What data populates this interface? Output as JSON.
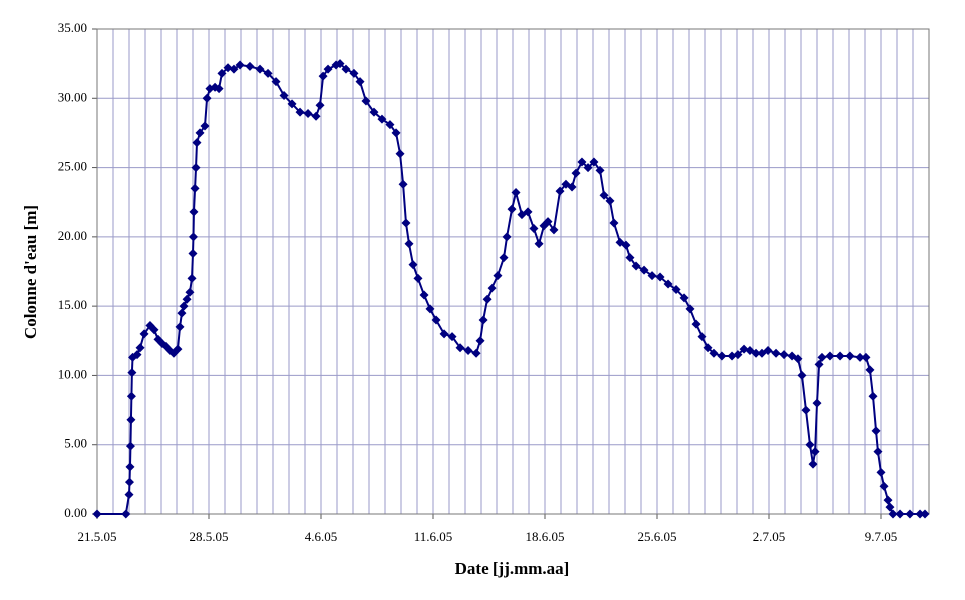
{
  "chart_data": {
    "type": "line",
    "x_label": "Date [jj.mm.aa]",
    "y_label": "Colonne d'eau [m]",
    "color": "#000080",
    "grid": true,
    "xlim": [
      0,
      52
    ],
    "ylim": [
      0,
      35
    ],
    "xticks": [
      {
        "value": 0,
        "label": "21.5.05"
      },
      {
        "value": 7,
        "label": "28.5.05"
      },
      {
        "value": 14,
        "label": "4.6.05"
      },
      {
        "value": 21,
        "label": "11.6.05"
      },
      {
        "value": 28,
        "label": "18.6.05"
      },
      {
        "value": 35,
        "label": "25.6.05"
      },
      {
        "value": 42,
        "label": "2.7.05"
      },
      {
        "value": 49,
        "label": "9.7.05"
      }
    ],
    "xgrid": [
      1,
      2,
      3,
      4,
      5,
      6,
      7,
      8,
      9,
      10,
      11,
      12,
      13,
      14,
      15,
      16,
      17,
      18,
      19,
      20,
      21,
      22,
      23,
      24,
      25,
      26,
      27,
      28,
      29,
      30,
      31,
      32,
      33,
      34,
      35,
      36,
      37,
      38,
      39,
      40,
      41,
      42,
      43,
      44,
      45,
      46,
      47,
      48,
      49,
      50,
      51
    ],
    "yticks": [
      {
        "value": 0,
        "label": "0.00"
      },
      {
        "value": 5,
        "label": "5.00"
      },
      {
        "value": 10,
        "label": "10.00"
      },
      {
        "value": 15,
        "label": "15.00"
      },
      {
        "value": 20,
        "label": "20.00"
      },
      {
        "value": 25,
        "label": "25.00"
      },
      {
        "value": 30,
        "label": "30.00"
      },
      {
        "value": 35,
        "label": "35.00"
      }
    ],
    "x": [
      0,
      1.8,
      2.0,
      2.03,
      2.06,
      2.09,
      2.12,
      2.15,
      2.18,
      2.22,
      2.5,
      2.69,
      2.94,
      3.31,
      3.56,
      3.81,
      4.06,
      4.31,
      4.56,
      4.81,
      5.06,
      5.19,
      5.31,
      5.44,
      5.63,
      5.81,
      5.94,
      6.0,
      6.03,
      6.06,
      6.13,
      6.19,
      6.25,
      6.44,
      6.75,
      6.88,
      7.06,
      7.38,
      7.63,
      7.81,
      8.19,
      8.56,
      8.94,
      9.56,
      10.19,
      10.69,
      11.19,
      11.69,
      12.19,
      12.69,
      13.19,
      13.69,
      13.94,
      14.13,
      14.44,
      14.94,
      15.19,
      15.56,
      16.06,
      16.44,
      16.81,
      17.31,
      17.81,
      18.31,
      18.69,
      18.94,
      19.13,
      19.31,
      19.5,
      19.75,
      20.06,
      20.44,
      20.81,
      21.19,
      21.69,
      22.19,
      22.69,
      23.19,
      23.69,
      23.94,
      24.13,
      24.38,
      24.69,
      25.06,
      25.44,
      25.63,
      25.94,
      26.19,
      26.56,
      26.94,
      27.31,
      27.63,
      27.94,
      28.19,
      28.56,
      28.94,
      29.31,
      29.69,
      29.94,
      30.31,
      30.69,
      31.06,
      31.44,
      31.69,
      32.06,
      32.31,
      32.69,
      33.06,
      33.31,
      33.69,
      34.19,
      34.69,
      35.19,
      35.69,
      36.19,
      36.69,
      37.06,
      37.44,
      37.81,
      38.19,
      38.56,
      39.06,
      39.69,
      40.06,
      40.44,
      40.81,
      41.19,
      41.56,
      41.94,
      42.44,
      42.94,
      43.44,
      43.81,
      44.06,
      44.31,
      44.56,
      44.75,
      44.88,
      45.0,
      45.13,
      45.31,
      45.81,
      46.44,
      47.06,
      47.69,
      48.06,
      48.31,
      48.5,
      48.69,
      48.81,
      49.0,
      49.19,
      49.44,
      49.56,
      49.75,
      50.19,
      50.81,
      51.44,
      51.75
    ],
    "values": [
      0,
      0,
      1.4,
      2.3,
      3.4,
      4.9,
      6.8,
      8.5,
      10.2,
      11.3,
      11.5,
      12,
      13,
      13.6,
      13.3,
      12.6,
      12.3,
      12.1,
      11.8,
      11.6,
      11.9,
      13.5,
      14.5,
      15,
      15.5,
      16,
      17,
      18.8,
      20,
      21.8,
      23.5,
      25,
      26.8,
      27.5,
      28,
      30,
      30.7,
      30.8,
      30.7,
      31.8,
      32.2,
      32.1,
      32.4,
      32.3,
      32.1,
      31.8,
      31.2,
      30.2,
      29.6,
      29,
      28.9,
      28.7,
      29.5,
      31.6,
      32.1,
      32.4,
      32.5,
      32.1,
      31.8,
      31.2,
      29.8,
      29,
      28.5,
      28.1,
      27.5,
      26,
      23.8,
      21,
      19.5,
      18,
      17,
      15.8,
      14.8,
      14,
      13,
      12.8,
      12,
      11.8,
      11.6,
      12.5,
      14,
      15.5,
      16.3,
      17.2,
      18.5,
      20,
      22,
      23.2,
      21.6,
      21.8,
      20.6,
      19.5,
      20.8,
      21.1,
      20.5,
      23.3,
      23.8,
      23.6,
      24.6,
      25.4,
      25,
      25.4,
      24.8,
      23,
      22.6,
      21,
      19.6,
      19.4,
      18.5,
      17.9,
      17.6,
      17.2,
      17.1,
      16.6,
      16.2,
      15.6,
      14.8,
      13.7,
      12.8,
      12,
      11.6,
      11.4,
      11.4,
      11.5,
      11.9,
      11.8,
      11.6,
      11.6,
      11.8,
      11.6,
      11.5,
      11.4,
      11.2,
      10,
      7.5,
      5,
      3.6,
      4.5,
      8,
      10.8,
      11.3,
      11.4,
      11.4,
      11.4,
      11.3,
      11.3,
      10.4,
      8.5,
      6,
      4.5,
      3,
      2,
      1,
      0.5,
      0,
      0,
      0,
      0,
      0
    ]
  }
}
